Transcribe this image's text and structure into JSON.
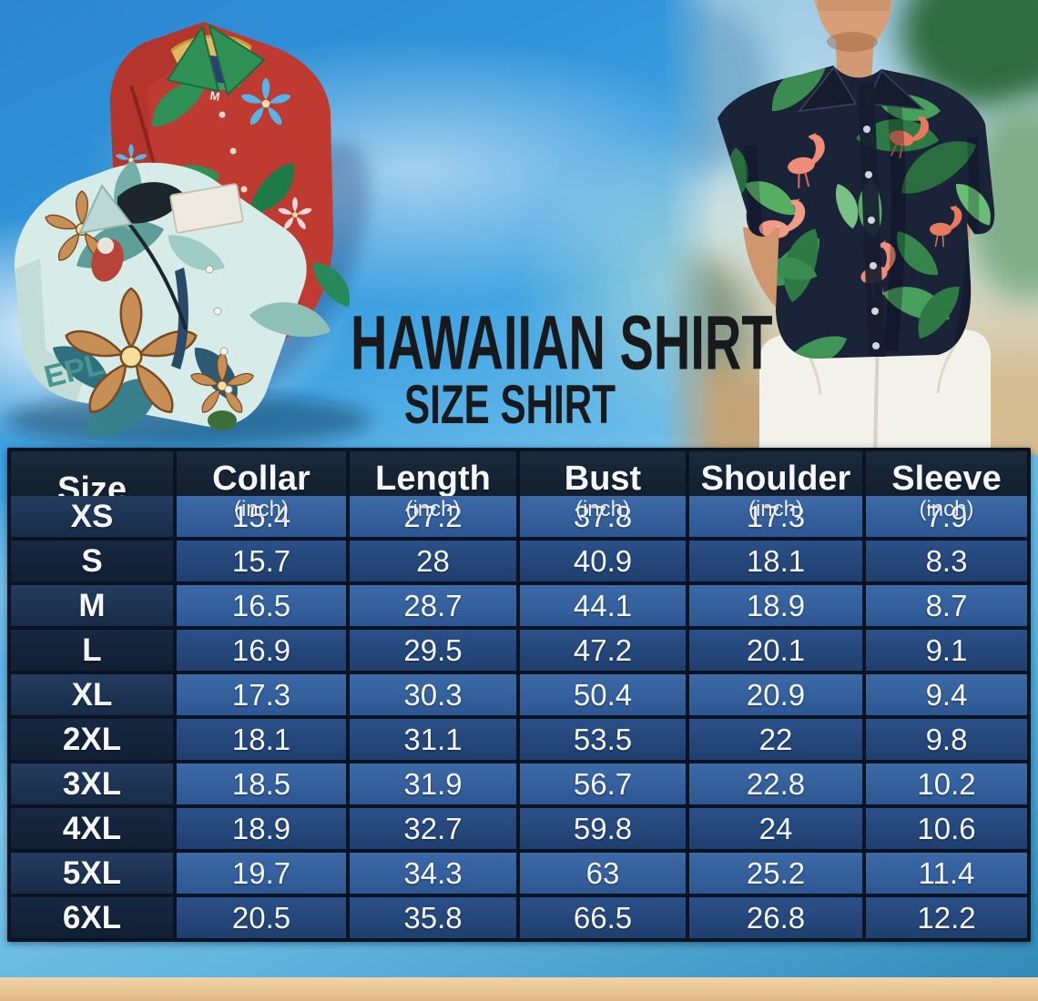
{
  "header": {
    "title_line1": "HAWAIIAN SHIRT",
    "title_line2": "SIZE SHIRT"
  },
  "size_table": {
    "columns": [
      {
        "label": "Size",
        "unit": ""
      },
      {
        "label": "Collar",
        "unit": "(inch)"
      },
      {
        "label": "Length",
        "unit": "(inch)"
      },
      {
        "label": "Bust",
        "unit": "(inch)"
      },
      {
        "label": "Shoulder",
        "unit": "(inch)"
      },
      {
        "label": "Sleeve",
        "unit": "(inch)"
      }
    ],
    "rows": [
      {
        "size": "XS",
        "values": [
          "15.4",
          "27.2",
          "37.8",
          "17.3",
          "7.9"
        ]
      },
      {
        "size": "S",
        "values": [
          "15.7",
          "28",
          "40.9",
          "18.1",
          "8.3"
        ]
      },
      {
        "size": "M",
        "values": [
          "16.5",
          "28.7",
          "44.1",
          "18.9",
          "8.7"
        ]
      },
      {
        "size": "L",
        "values": [
          "16.9",
          "29.5",
          "47.2",
          "20.1",
          "9.1"
        ]
      },
      {
        "size": "XL",
        "values": [
          "17.3",
          "30.3",
          "50.4",
          "20.9",
          "9.4"
        ]
      },
      {
        "size": "2XL",
        "values": [
          "18.1",
          "31.1",
          "53.5",
          "22",
          "9.8"
        ]
      },
      {
        "size": "3XL",
        "values": [
          "18.5",
          "31.9",
          "56.7",
          "22.8",
          "10.2"
        ]
      },
      {
        "size": "4XL",
        "values": [
          "18.9",
          "32.7",
          "59.8",
          "24",
          "10.6"
        ]
      },
      {
        "size": "5XL",
        "values": [
          "19.7",
          "34.3",
          "63",
          "25.2",
          "11.4"
        ]
      },
      {
        "size": "6XL",
        "values": [
          "20.5",
          "35.8",
          "66.5",
          "26.8",
          "12.2"
        ]
      }
    ]
  },
  "chart_data": {
    "type": "table",
    "title": "Hawaiian Shirt Size Shirt",
    "columns": [
      "Size",
      "Collar (inch)",
      "Length (inch)",
      "Bust (inch)",
      "Shoulder (inch)",
      "Sleeve (inch)"
    ],
    "rows": [
      [
        "XS",
        15.4,
        27.2,
        37.8,
        17.3,
        7.9
      ],
      [
        "S",
        15.7,
        28,
        40.9,
        18.1,
        8.3
      ],
      [
        "M",
        16.5,
        28.7,
        44.1,
        18.9,
        8.7
      ],
      [
        "L",
        16.9,
        29.5,
        47.2,
        20.1,
        9.1
      ],
      [
        "XL",
        17.3,
        30.3,
        50.4,
        20.9,
        9.4
      ],
      [
        "2XL",
        18.1,
        31.1,
        53.5,
        22,
        9.8
      ],
      [
        "3XL",
        18.5,
        31.9,
        56.7,
        22.8,
        10.2
      ],
      [
        "4XL",
        18.9,
        32.7,
        59.8,
        24,
        10.6
      ],
      [
        "5XL",
        19.7,
        34.3,
        63,
        25.2,
        11.4
      ],
      [
        "6XL",
        20.5,
        35.8,
        66.5,
        26.8,
        12.2
      ]
    ]
  },
  "media": {
    "fabric_text": "EPL",
    "shirt_label_text": "M"
  },
  "colors": {
    "row_light": "#35619d",
    "row_dark": "#24477a",
    "size_col_light": "#1e3452",
    "size_col_dark": "#16263e",
    "header_bg": "#131f2d",
    "table_border": "#0a1322",
    "table_text": "#f4f7fb",
    "title_text": "#17191c",
    "sky_blue": "#43a5e2",
    "sand": "#e7c492",
    "shirt_red": "#bf3a31",
    "shirt_teal": "#d7ece8",
    "model_shirt_navy": "#1b2339",
    "leaf_green": "#3f9457",
    "flamingo_pink": "#ef8d78"
  }
}
